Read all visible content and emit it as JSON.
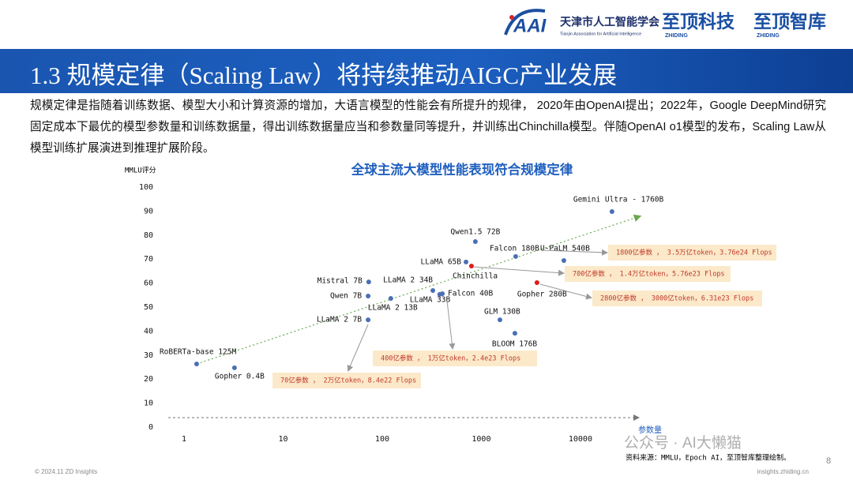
{
  "header": {
    "org_name": "天津市人工智能学会",
    "org_english": "Tianjin Association for Artificial Intelligence",
    "org_logo": "AAI",
    "brand1": "至顶科技",
    "brand1_sub": "ZHIDING",
    "brand2": "至顶智库",
    "brand2_sub": "ZHIDING"
  },
  "title": "1.3 规模定律（Scaling Law）将持续推动AIGC产业发展",
  "text": "规模定律是指随着训练数据、模型大小和计算资源的增加，大语言模型的性能会有所提升的规律， 2020年由OpenAI提出；2022年，Google DeepMind研究固定成本下最优的模型参数量和训练数据量，得出训练数据量应当和参数量同等提升，并训练出Chinchilla模型。伴随OpenAI o1模型的发布，Scaling Law从模型训练扩展演进到推理扩展阶段。",
  "chart_data": {
    "type": "scatter",
    "title": "全球主流大模型性能表现符合规模定律",
    "y_label": "MMLU评分",
    "x_label": "参数量",
    "x": [
      1.34,
      3.23,
      72,
      72,
      73,
      122,
      324,
      380,
      404,
      700,
      795,
      870,
      2220,
      6800,
      3640,
      1540,
      2180,
      20800
    ],
    "values": [
      26.3,
      24.7,
      44.7,
      54.6,
      60.5,
      53.6,
      56.9,
      55.3,
      55.6,
      68.8,
      67.1,
      77.3,
      71.1,
      69.4,
      60.2,
      44.7,
      39.1,
      89.8
    ],
    "labels": [
      "RoBERTa-base 125M",
      "Gopher 0.4B",
      "LLaMA 2 7B",
      "Qwen 7B",
      "Mistral 7B",
      "LLaMA 2 13B",
      "LLaMA 2 34B",
      "LLaMA 33B",
      "Falcon 40B",
      "LLaMA 65B",
      "Chinchilla",
      "Qwen1.5 72B",
      "Falcon 180B",
      "U-PaLM 540B",
      "Gopher 280B",
      "GLM 130B",
      "BLOOM 176B",
      "Gemini Ultra  - 1760B"
    ],
    "colors": [
      "#4a6fb5",
      "#4a6fb5",
      "#4a6fb5",
      "#4a6fb5",
      "#4a6fb5",
      "#4a6fb5",
      "#4a6fb5",
      "#4a6fb5",
      "#4a6fb5",
      "#4a6fb5",
      "#e01b1b",
      "#4a6fb5",
      "#4a6fb5",
      "#4a6fb5",
      "#e01b1b",
      "#4a6fb5",
      "#4a6fb5",
      "#4a6fb5"
    ],
    "xlim": [
      1,
      33000
    ],
    "xlog": true,
    "xticks": [
      1,
      10,
      100,
      1000,
      10000
    ],
    "ylim": [
      0,
      100
    ],
    "yticks": [
      0,
      10,
      20,
      30,
      40,
      50,
      60,
      70,
      80,
      90,
      100
    ],
    "annotations": [
      "1800亿参数 ， 3.5万亿token，3.76e24 Flops",
      "700亿参数 ， 1.4万亿token，5.76e23 Flops",
      "2800亿参数 ， 3000亿token，6.31e23 Flops",
      "400亿参数 ， 1万亿token，2.4e23 Flops",
      "70亿参数 ， 2万亿token，8.4e22 Flops"
    ],
    "source": "资料来源：MMLU，Epoch AI，至顶智库整理绘制。"
  },
  "watermark": "公众号 · AI大懒猫",
  "footer": {
    "copyright": "© 2024.11 ZD Insights",
    "url": "insights.zhiding.cn",
    "page": "8"
  }
}
